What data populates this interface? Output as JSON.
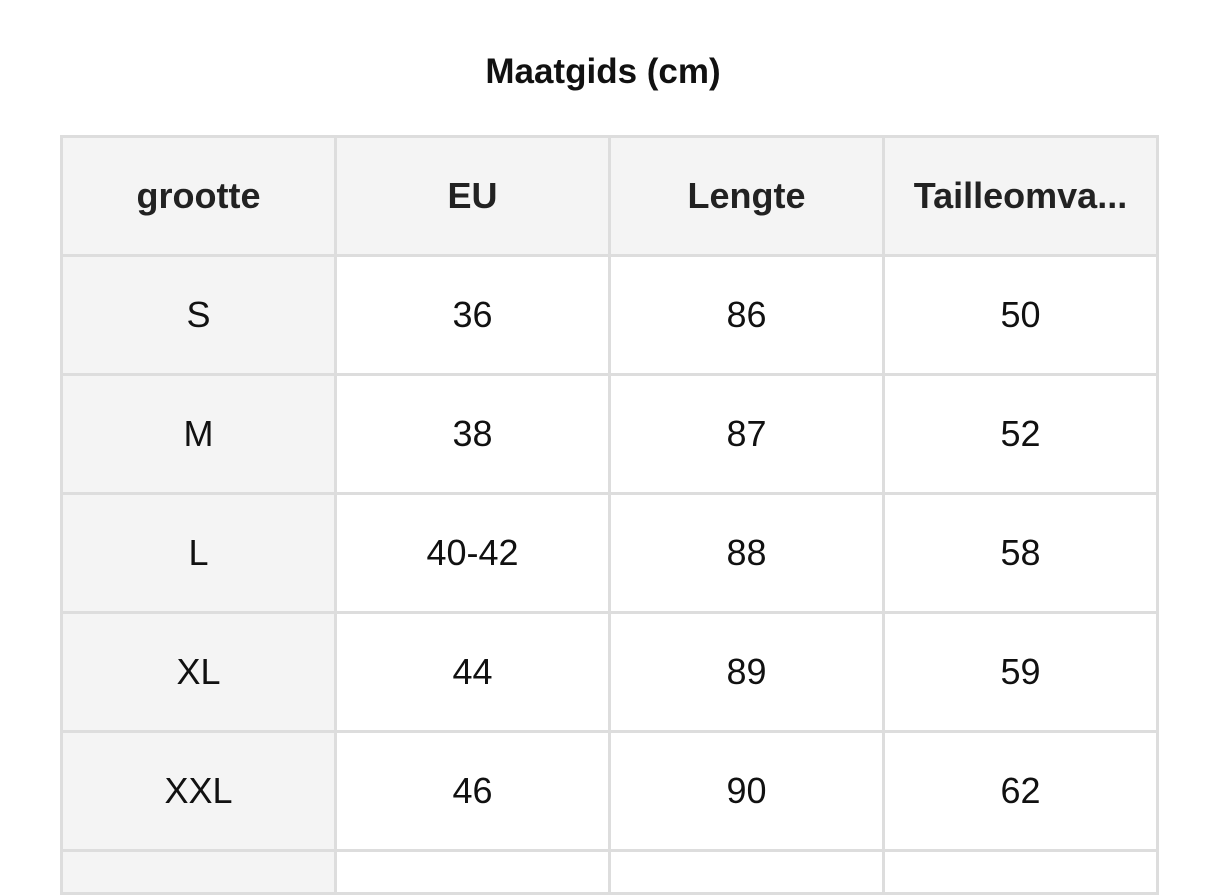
{
  "title": "Maatgids (cm)",
  "table": {
    "headers": [
      "grootte",
      "EU",
      "Lengte",
      "Tailleomva..."
    ],
    "rows": [
      [
        "S",
        "36",
        "86",
        "50"
      ],
      [
        "M",
        "38",
        "87",
        "52"
      ],
      [
        "L",
        "40-42",
        "88",
        "58"
      ],
      [
        "XL",
        "44",
        "89",
        "59"
      ],
      [
        "XXL",
        "46",
        "90",
        "62"
      ]
    ]
  },
  "colors": {
    "header_bg": "#f4f4f4",
    "border": "#dddddd"
  }
}
